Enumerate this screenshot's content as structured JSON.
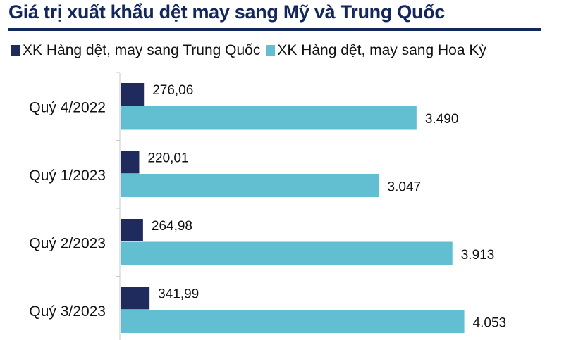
{
  "chart_data": {
    "type": "bar",
    "orientation": "horizontal",
    "title": "Giá trị xuất khẩu dệt may sang Mỹ và Trung Quốc",
    "categories": [
      "Quý 4/2022",
      "Quý 1/2023",
      "Quý 2/2023",
      "Quý 3/2023"
    ],
    "series": [
      {
        "name": "XK Hàng dệt, may sang Trung Quốc",
        "color": "#1f2b5c",
        "values": [
          276.06,
          220.01,
          264.98,
          341.99
        ],
        "labels": [
          "276,06",
          "220,01",
          "264,98",
          "341,99"
        ]
      },
      {
        "name": "XK Hàng dệt, may sang Hoa Kỳ",
        "color": "#62bfd1",
        "values": [
          3490,
          3047,
          3913,
          4053
        ],
        "labels": [
          "3.490",
          "3.047",
          "3.913",
          "4.053"
        ]
      }
    ],
    "xlim": [
      0,
      4500
    ],
    "grid": false,
    "legend_position": "top"
  }
}
